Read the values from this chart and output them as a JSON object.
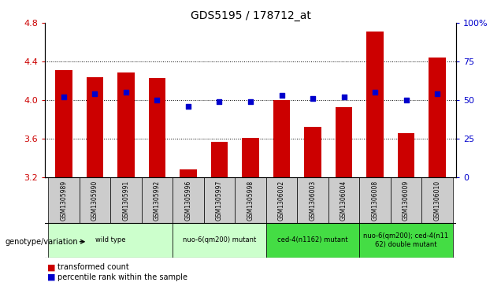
{
  "title": "GDS5195 / 178712_at",
  "samples": [
    "GSM1305989",
    "GSM1305990",
    "GSM1305991",
    "GSM1305992",
    "GSM1305996",
    "GSM1305997",
    "GSM1305998",
    "GSM1306002",
    "GSM1306003",
    "GSM1306004",
    "GSM1306008",
    "GSM1306009",
    "GSM1306010"
  ],
  "bar_values": [
    4.31,
    4.24,
    4.29,
    4.23,
    3.28,
    3.57,
    3.61,
    4.0,
    3.72,
    3.93,
    4.71,
    3.66,
    4.44
  ],
  "dot_values": [
    52,
    54,
    55,
    50,
    46,
    49,
    49,
    53,
    51,
    52,
    55,
    50,
    54
  ],
  "ylim": [
    3.2,
    4.8
  ],
  "yticks": [
    3.2,
    3.6,
    4.0,
    4.4,
    4.8
  ],
  "right_yticks": [
    0,
    25,
    50,
    75,
    100
  ],
  "right_ylim": [
    0,
    100
  ],
  "bar_color": "#cc0000",
  "dot_color": "#0000cc",
  "bg_color": "#ffffff",
  "groups": [
    {
      "label": "wild type",
      "start": 0,
      "end": 3,
      "color": "#ccffcc"
    },
    {
      "label": "nuo-6(qm200) mutant",
      "start": 4,
      "end": 6,
      "color": "#ccffcc"
    },
    {
      "label": "ced-4(n1162) mutant",
      "start": 7,
      "end": 9,
      "color": "#44dd44"
    },
    {
      "label": "nuo-6(qm200); ced-4(n11\n62) double mutant",
      "start": 10,
      "end": 12,
      "color": "#44dd44"
    }
  ],
  "xlabel_row_color": "#cccccc",
  "genotype_label": "genotype/variation",
  "legend_bar_label": "transformed count",
  "legend_dot_label": "percentile rank within the sample"
}
